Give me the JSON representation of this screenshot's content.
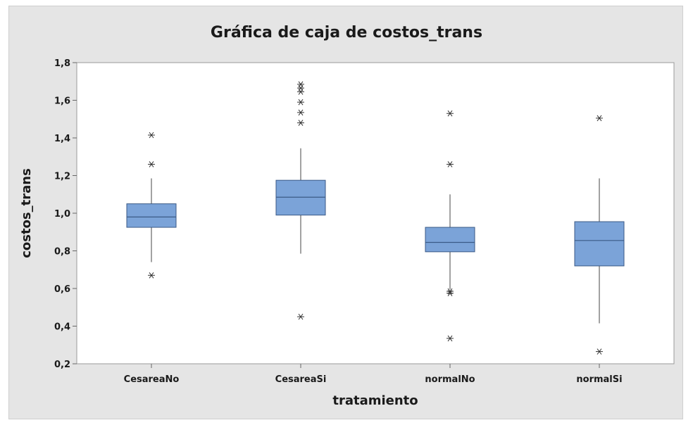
{
  "chart_data": {
    "type": "boxplot",
    "title": "Gráfica de caja de costos_trans",
    "xlabel": "tratamiento",
    "ylabel": "costos_trans",
    "ylim": [
      0.2,
      1.8
    ],
    "yticks": [
      "0,2",
      "0,4",
      "0,6",
      "0,8",
      "1,0",
      "1,2",
      "1,4",
      "1,6",
      "1,8"
    ],
    "ytick_values": [
      0.2,
      0.4,
      0.6,
      0.8,
      1.0,
      1.2,
      1.4,
      1.6,
      1.8
    ],
    "categories": [
      "CesareaNo",
      "CesareaSi",
      "normalNo",
      "normalSi"
    ],
    "boxes": [
      {
        "category": "CesareaNo",
        "whisker_low": 0.74,
        "q1": 0.925,
        "median": 0.98,
        "q3": 1.05,
        "whisker_high": 1.185,
        "outliers": [
          0.67,
          1.26,
          1.415
        ]
      },
      {
        "category": "CesareaSi",
        "whisker_low": 0.785,
        "q1": 0.99,
        "median": 1.085,
        "q3": 1.175,
        "whisker_high": 1.345,
        "outliers": [
          0.45,
          1.48,
          1.535,
          1.59,
          1.645,
          1.665,
          1.685
        ]
      },
      {
        "category": "normalNo",
        "whisker_low": 0.595,
        "q1": 0.795,
        "median": 0.845,
        "q3": 0.925,
        "whisker_high": 1.1,
        "outliers": [
          0.335,
          0.575,
          0.585,
          1.26,
          1.53
        ]
      },
      {
        "category": "normalSi",
        "whisker_low": 0.415,
        "q1": 0.72,
        "median": 0.855,
        "q3": 0.955,
        "whisker_high": 1.185,
        "outliers": [
          0.265,
          1.505
        ]
      }
    ],
    "grid": false,
    "colors": {
      "box_fill": "#7ba3d8",
      "box_stroke": "#3b5a86",
      "whisker": "#444444",
      "outlier": "#333333",
      "plot_bg": "#ffffff",
      "frame_bg": "#e5e5e5"
    }
  }
}
